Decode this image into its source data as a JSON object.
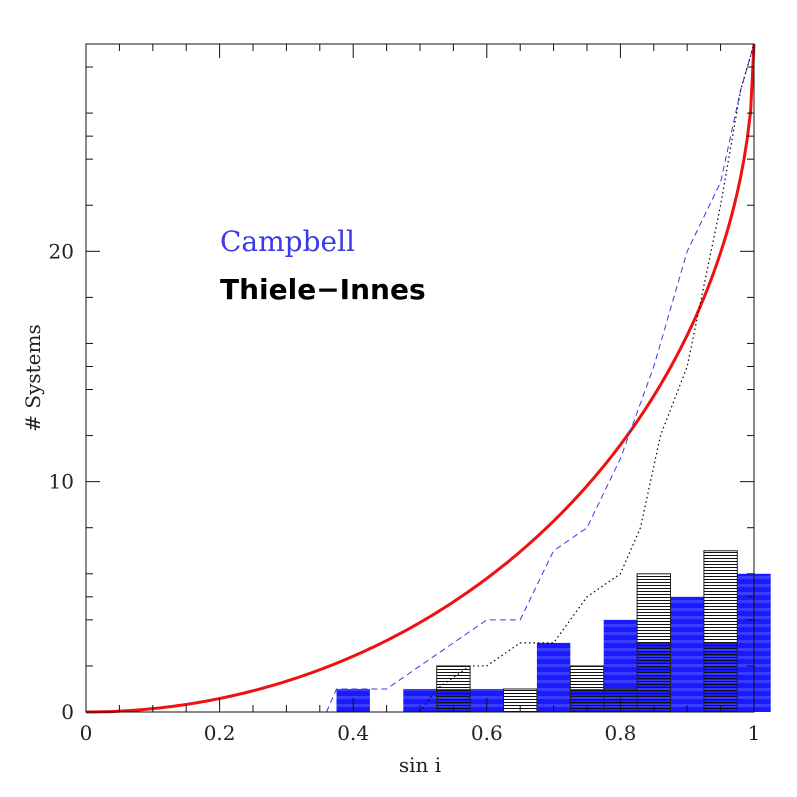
{
  "chart_data": {
    "type": "bar",
    "title": "",
    "xlabel": "sin i",
    "ylabel": "# Systems",
    "xlim": [
      0,
      1
    ],
    "ylim": [
      0,
      29
    ],
    "xticks": [
      0,
      0.2,
      0.4,
      0.6,
      0.8,
      1
    ],
    "xtick_labels": [
      "0",
      "0.2",
      "0.4",
      "0.6",
      "0.8",
      "1"
    ],
    "yticks": [
      0,
      10,
      20
    ],
    "ytick_labels": [
      "0",
      "10",
      "20"
    ],
    "grid": false,
    "legend": {
      "placement": "upper-left",
      "entries": [
        {
          "label": "Campbell",
          "color": "#3a3ae8"
        },
        {
          "label": "Thiele−Innes",
          "color": "#000000"
        }
      ]
    },
    "bin_width": 0.05,
    "histograms": [
      {
        "key": "campbell",
        "style": "solid blue fill with horizontal stripes",
        "fill_color": "#1a1aff",
        "bins": [
          {
            "left": 0.375,
            "count": 1
          },
          {
            "left": 0.475,
            "count": 1
          },
          {
            "left": 0.525,
            "count": 1
          },
          {
            "left": 0.575,
            "count": 1
          },
          {
            "left": 0.675,
            "count": 3
          },
          {
            "left": 0.725,
            "count": 1
          },
          {
            "left": 0.775,
            "count": 4
          },
          {
            "left": 0.825,
            "count": 3
          },
          {
            "left": 0.875,
            "count": 5
          },
          {
            "left": 0.925,
            "count": 3
          },
          {
            "left": 0.975,
            "count": 6
          }
        ]
      },
      {
        "key": "thiele_innes",
        "style": "black horizontal hatching",
        "fill_color": "#000000",
        "bins": [
          {
            "left": 0.525,
            "count": 2
          },
          {
            "left": 0.625,
            "count": 1
          },
          {
            "left": 0.725,
            "count": 2
          },
          {
            "left": 0.775,
            "count": 1
          },
          {
            "left": 0.825,
            "count": 6
          },
          {
            "left": 0.925,
            "count": 7
          }
        ]
      }
    ],
    "series": [
      {
        "key": "expected",
        "style": "solid",
        "color": "#ee1111",
        "function": "y = 29 * (1 - sqrt(1 - x^2))"
      },
      {
        "key": "campbell_cumulative",
        "style": "dashed",
        "color": "#3a3ae8",
        "points": [
          [
            0.36,
            0
          ],
          [
            0.375,
            1
          ],
          [
            0.45,
            1
          ],
          [
            0.5,
            2
          ],
          [
            0.55,
            3
          ],
          [
            0.6,
            4
          ],
          [
            0.65,
            4
          ],
          [
            0.7,
            7
          ],
          [
            0.75,
            8
          ],
          [
            0.8,
            11
          ],
          [
            0.85,
            15
          ],
          [
            0.9,
            20
          ],
          [
            0.95,
            23
          ],
          [
            0.98,
            27
          ],
          [
            1.0,
            29
          ]
        ]
      },
      {
        "key": "thiele_innes_cumulative",
        "style": "dotted",
        "color": "#000000",
        "points": [
          [
            0.5,
            0
          ],
          [
            0.525,
            1
          ],
          [
            0.575,
            2
          ],
          [
            0.6,
            2
          ],
          [
            0.65,
            3
          ],
          [
            0.7,
            3
          ],
          [
            0.75,
            5
          ],
          [
            0.8,
            6
          ],
          [
            0.83,
            8
          ],
          [
            0.86,
            12
          ],
          [
            0.9,
            15
          ],
          [
            0.95,
            22
          ],
          [
            0.98,
            27
          ],
          [
            1.0,
            29
          ]
        ]
      }
    ]
  }
}
